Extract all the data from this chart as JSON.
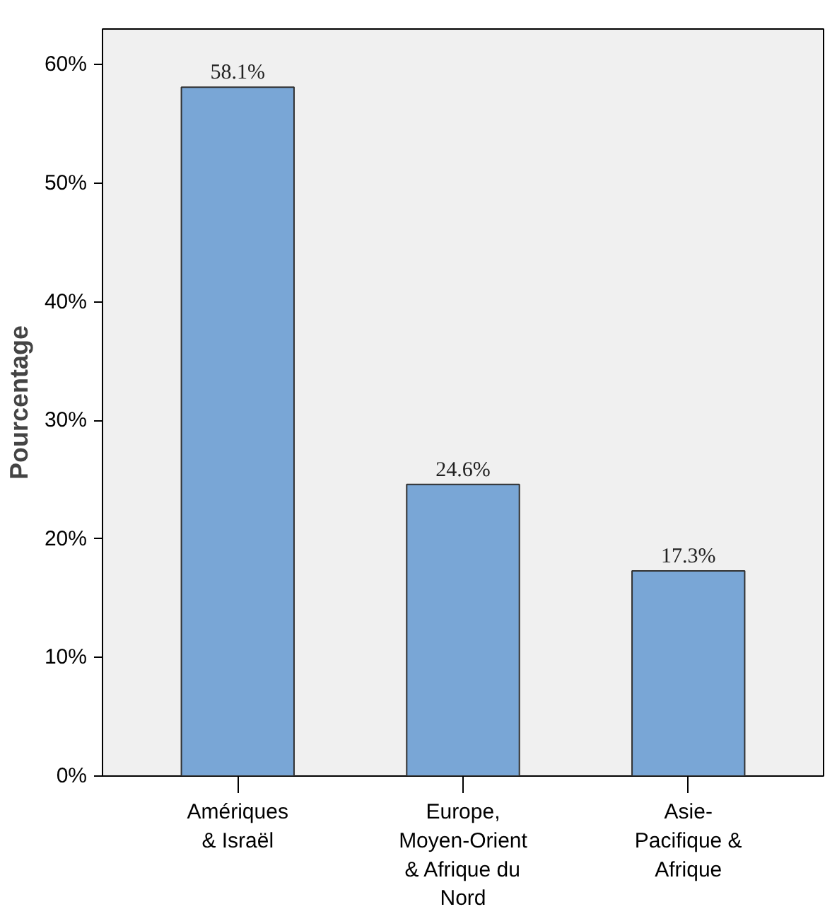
{
  "chart_data": {
    "type": "bar",
    "ylabel": "Pourcentage",
    "categories": [
      "Amériques\n& Israël",
      "Europe,\nMoyen-Orient\n& Afrique du\nNord",
      "Asie-\nPacifique &\nAfrique"
    ],
    "values": [
      58.1,
      24.6,
      17.3
    ],
    "color": "#79a6d6",
    "value_labels": [
      "58.1%",
      "24.6%",
      "17.3%"
    ],
    "ylim": [
      0,
      63
    ],
    "yticks": [
      {
        "value": 0,
        "label": "0%"
      },
      {
        "value": 10,
        "label": "10%"
      },
      {
        "value": 20,
        "label": "20%"
      },
      {
        "value": 30,
        "label": "30%"
      },
      {
        "value": 40,
        "label": "40%"
      },
      {
        "value": 50,
        "label": "50%"
      },
      {
        "value": 60,
        "label": "60%"
      }
    ],
    "grid": false
  }
}
